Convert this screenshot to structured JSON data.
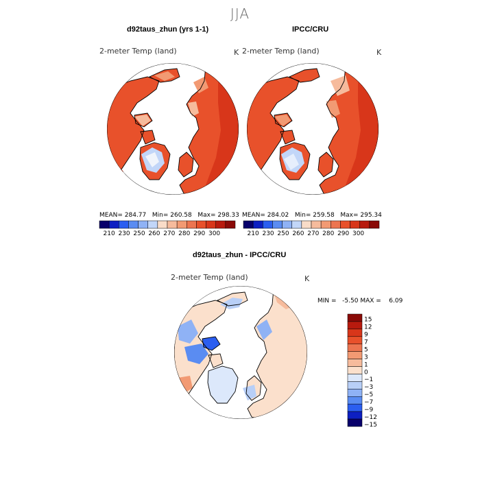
{
  "title": "JJA",
  "colors": {
    "land_warm": "#e8512b",
    "land_hot": "#d8361a",
    "land_mild": "#f6a083",
    "ocean": "#ffffff",
    "coast": "#000000"
  },
  "chart_data": [
    {
      "type": "map",
      "id": "model",
      "title": "d92taus_zhun (yrs 1-1)",
      "variable": "2-meter Temp (land)",
      "units": "K",
      "stats": {
        "mean_label": "MEAN=",
        "mean": "284.77",
        "min_label": "Min=",
        "min": "260.58",
        "max_label": "Max=",
        "max": "298.33"
      },
      "colorbar": {
        "colors": [
          "#08006b",
          "#0d1fc2",
          "#2b5ef0",
          "#5a8cf2",
          "#8fb2f5",
          "#c2d6f8",
          "#f9dcc8",
          "#f6bb9c",
          "#f29a73",
          "#ec7550",
          "#e8512b",
          "#d8361a",
          "#b81a0e",
          "#8a0a07"
        ],
        "labels": [
          "210",
          "230",
          "250",
          "260",
          "270",
          "280",
          "290",
          "300"
        ]
      }
    },
    {
      "type": "map",
      "id": "obs",
      "title": "IPCC/CRU",
      "variable": "2-meter Temp (land)",
      "units": "K",
      "stats": {
        "mean_label": "MEAN=",
        "mean": "284.02",
        "min_label": "Min=",
        "min": "259.58",
        "max_label": "Max=",
        "max": "295.34"
      },
      "colorbar": {
        "colors": [
          "#08006b",
          "#0d1fc2",
          "#2b5ef0",
          "#5a8cf2",
          "#8fb2f5",
          "#c2d6f8",
          "#f9dcc8",
          "#f6bb9c",
          "#f29a73",
          "#ec7550",
          "#e8512b",
          "#d8361a",
          "#b81a0e",
          "#8a0a07"
        ],
        "labels": [
          "210",
          "230",
          "250",
          "260",
          "270",
          "280",
          "290",
          "300"
        ]
      }
    },
    {
      "type": "map",
      "id": "diff",
      "title": "d92taus_zhun - IPCC/CRU",
      "variable": "2-meter Temp (land)",
      "units": "K",
      "stats": {
        "min_label": "MIN =",
        "min": "-5.50",
        "max_label": "MAX =",
        "max": "6.09"
      },
      "colorbar": {
        "colors": [
          "#8a0a07",
          "#b81a0e",
          "#d8361a",
          "#e8512b",
          "#ec7550",
          "#f29a73",
          "#f6bb9c",
          "#fbe0cc",
          "#dce8fb",
          "#b8cff7",
          "#8fb2f5",
          "#5a8cf2",
          "#2b5ef0",
          "#0d1fc2",
          "#08006b"
        ],
        "labels": [
          "15",
          "12",
          "9",
          "7",
          "5",
          "3",
          "1",
          "0",
          "−1",
          "−3",
          "−5",
          "−7",
          "−9",
          "−12",
          "−15"
        ]
      }
    }
  ]
}
